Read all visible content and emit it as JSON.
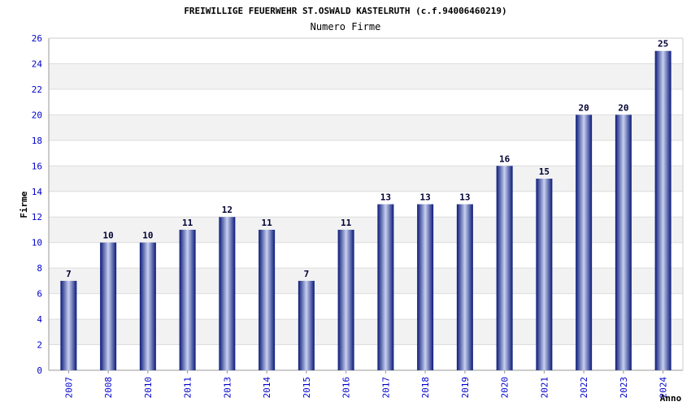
{
  "chart_data": {
    "type": "bar",
    "title": "FREIWILLIGE FEUERWEHR ST.OSWALD KASTELRUTH (c.f.94006460219)",
    "subtitle": "Numero Firme",
    "xlabel": "Anno",
    "ylabel": "Firme",
    "ylim": [
      0,
      26
    ],
    "yticks": [
      0,
      2,
      4,
      6,
      8,
      10,
      12,
      14,
      16,
      18,
      20,
      22,
      24,
      26
    ],
    "grid": true,
    "legend": "none",
    "categories": [
      "2007",
      "2008",
      "2010",
      "2011",
      "2013",
      "2014",
      "2015",
      "2016",
      "2017",
      "2018",
      "2019",
      "2020",
      "2021",
      "2022",
      "2023",
      "2024"
    ],
    "values": [
      7,
      10,
      10,
      11,
      12,
      11,
      7,
      11,
      13,
      13,
      13,
      16,
      15,
      20,
      20,
      25
    ]
  },
  "colors": {
    "bar_dark": "#0a1a78",
    "bar_light": "#c8d0f0",
    "band": "#f2f2f2",
    "tick_text": "#0000cc"
  }
}
